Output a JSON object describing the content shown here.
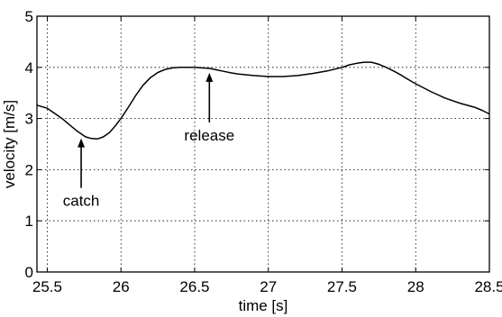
{
  "chart_data": {
    "type": "line",
    "title": "",
    "xlabel": "time [s]",
    "ylabel": "velocity [m/s]",
    "xlim": [
      25.43,
      28.5
    ],
    "ylim": [
      0,
      5
    ],
    "grid": true,
    "legend": "none",
    "x_ticks": [
      25.5,
      26,
      26.5,
      27,
      27.5,
      28,
      28.5
    ],
    "x_tick_labels": [
      "25.5",
      "26",
      "26.5",
      "27",
      "27.5",
      "28",
      "28.5"
    ],
    "y_ticks": [
      0,
      1,
      2,
      3,
      4,
      5
    ],
    "y_tick_labels": [
      "0",
      "1",
      "2",
      "3",
      "4",
      "5"
    ],
    "line_color": "#000000",
    "series": [
      {
        "x": [
          25.43,
          25.5,
          25.55,
          25.6,
          25.65,
          25.7,
          25.73,
          25.76,
          25.8,
          25.84,
          25.88,
          25.92,
          25.96,
          26.0,
          26.05,
          26.1,
          26.15,
          26.2,
          26.25,
          26.3,
          26.35,
          26.4,
          26.45,
          26.5,
          26.55,
          26.6,
          26.65,
          26.7,
          26.75,
          26.8,
          26.9,
          27.0,
          27.1,
          27.2,
          27.3,
          27.4,
          27.5,
          27.55,
          27.6,
          27.65,
          27.7,
          27.75,
          27.8,
          27.85,
          27.9,
          27.95,
          28.0,
          28.1,
          28.2,
          28.3,
          28.4,
          28.45,
          28.5
        ],
        "y": [
          3.26,
          3.2,
          3.1,
          3.0,
          2.88,
          2.76,
          2.7,
          2.64,
          2.61,
          2.6,
          2.64,
          2.72,
          2.85,
          3.0,
          3.22,
          3.45,
          3.65,
          3.8,
          3.9,
          3.96,
          3.99,
          4.0,
          4.0,
          4.0,
          3.99,
          3.98,
          3.95,
          3.92,
          3.89,
          3.87,
          3.84,
          3.82,
          3.82,
          3.84,
          3.88,
          3.93,
          4.0,
          4.05,
          4.08,
          4.1,
          4.1,
          4.06,
          4.0,
          3.93,
          3.85,
          3.76,
          3.68,
          3.53,
          3.4,
          3.3,
          3.22,
          3.16,
          3.09
        ]
      }
    ],
    "annotations": [
      {
        "text": "catch",
        "x": 25.73,
        "y": 2.7
      },
      {
        "text": "release",
        "x": 26.6,
        "y": 3.98
      }
    ]
  }
}
